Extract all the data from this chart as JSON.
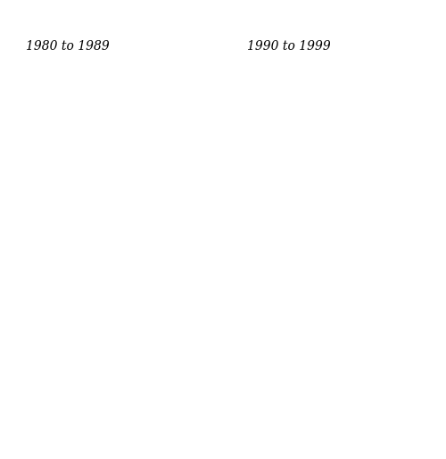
{
  "title_left": "1980 to 1989",
  "title_right": "1990 to 1999",
  "title_fontsize": 10,
  "background_color": "#ffffff",
  "figsize": [
    5.0,
    5.15
  ],
  "dpi": 100,
  "border_color": "#444444",
  "default_color": "#eef6ee",
  "proj_extent": [
    -9.5,
    2.2,
    49.5,
    61.2
  ],
  "county_colors_1980": {
    "Highland": "#1a7a1a",
    "Eilean Siar": "#d4ecd4",
    "Orkney Islands": "#eef6ee",
    "Shetland Islands": "#eef6ee",
    "Aberdeenshire": "#1a7a1a",
    "Aberdeen City": "#1a7a1a",
    "Moray": "#1a7a1a",
    "Angus": "#1a7a1a",
    "Perth and Kinross": "#1a7a1a",
    "Dundee City": "#1a7a1a",
    "Stirling": "#111111",
    "Clackmannanshire": "#111111",
    "Falkirk": "#111111",
    "East Lothian": "#2e932e",
    "Edinburgh": "#2e932e",
    "Midlothian": "#2e932e",
    "West Lothian": "#2e932e",
    "Scottish Borders": "#2e932e",
    "South Lanarkshire": "#1a7a1a",
    "North Lanarkshire": "#1a7a1a",
    "East Ayrshire": "#1a7a1a",
    "South Ayrshire": "#1a7a1a",
    "North Ayrshire": "#1a7a1a",
    "Argyll and Bute": "#1a7a1a",
    "Dumfries and Galloway": "#2e932e",
    "Fife": "#c8e6c8",
    "Renfrewshire": "#1a7a1a",
    "East Renfrewshire": "#1a7a1a",
    "Inverclyde": "#1a7a1a",
    "West Dunbartonshire": "#1a7a1a",
    "East Dunbartonshire": "#1a7a1a",
    "Glasgow City": "#1a7a1a",
    "Northumberland": "#2e932e",
    "Cumbria": "#2e932e",
    "Durham": "#6db86d",
    "North Yorkshire": "#6db86d",
    "Lancashire": "#d4ecd4",
    "Tyne and Wear": "#eef6ee",
    "Cleveland": "#eef6ee",
    "West Yorkshire": "#eef6ee",
    "South Yorkshire": "#eef6ee",
    "Humberside": "#eef6ee",
    "Lincolnshire": "#eef6ee",
    "Norfolk": "#d4ecd4",
    "Suffolk": "#d4ecd4",
    "Essex": "#eef6ee",
    "Kent": "#d4ecd4",
    "East Sussex": "#a8d5a8",
    "West Sussex": "#eef6ee",
    "Surrey": "#eef6ee",
    "Hampshire": "#eef6ee",
    "Dorset": "#d4ecd4",
    "Devon": "#6db86d",
    "Cornwall": "#eef6ee",
    "Somerset": "#eef6ee",
    "Wiltshire": "#eef6ee",
    "Berkshire": "#eef6ee",
    "Oxfordshire": "#eef6ee",
    "Buckinghamshire": "#eef6ee",
    "Hertfordshire": "#eef6ee",
    "Bedfordshire": "#eef6ee",
    "Cambridgeshire": "#eef6ee",
    "Nottinghamshire": "#eef6ee",
    "Derbyshire": "#eef6ee",
    "Leicestershire": "#eef6ee",
    "Staffordshire": "#eef6ee",
    "West Midlands": "#eef6ee",
    "Warwickshire": "#eef6ee",
    "Worcestershire": "#eef6ee",
    "Herefordshire": "#eef6ee",
    "Gloucestershire": "#eef6ee",
    "Avon": "#eef6ee",
    "Shropshire": "#eef6ee",
    "Cheshire": "#eef6ee",
    "Merseyside": "#eef6ee",
    "Greater Manchester": "#eef6ee",
    "East Yorkshire": "#eef6ee",
    "North Lincolnshire": "#eef6ee",
    "Powys": "#d4ecd4",
    "Gwynedd": "#d4ecd4",
    "Conwy": "#eef6ee",
    "Denbighshire": "#eef6ee",
    "Flintshire": "#eef6ee",
    "Wrexham": "#eef6ee",
    "Ceredigion": "#eef6ee",
    "Pembrokeshire": "#eef6ee",
    "Carmarthenshire": "#eef6ee",
    "Swansea": "#eef6ee",
    "Neath Port Talbot": "#eef6ee",
    "Bridgend": "#eef6ee",
    "Vale of Glamorgan": "#eef6ee",
    "Cardiff": "#eef6ee",
    "Rhondda Cynon Taf": "#eef6ee",
    "Merthyr Tydfil": "#eef6ee",
    "Caerphilly": "#eef6ee",
    "Blaenau Gwent": "#eef6ee",
    "Torfaen": "#eef6ee",
    "Newport": "#eef6ee",
    "Monmouthshire": "#eef6ee",
    "Isle of Anglesey": "#eef6ee"
  },
  "county_colors_1990": {
    "Highland": "#1a7a1a",
    "Eilean Siar": "#d4ecd4",
    "Orkney Islands": "#eef6ee",
    "Shetland Islands": "#eef6ee",
    "Aberdeenshire": "#1a7a1a",
    "Aberdeen City": "#1a7a1a",
    "Moray": "#1a7a1a",
    "Angus": "#2e932e",
    "Perth and Kinross": "#2e932e",
    "Dundee City": "#2e932e",
    "Stirling": "#2e932e",
    "Clackmannanshire": "#2e932e",
    "Falkirk": "#2e932e",
    "East Lothian": "#b8dbb8",
    "Edinburgh": "#b8dbb8",
    "Midlothian": "#b8dbb8",
    "West Lothian": "#b8dbb8",
    "Scottish Borders": "#2e932e",
    "South Lanarkshire": "#1a7a1a",
    "North Lanarkshire": "#1a7a1a",
    "East Ayrshire": "#1a7a1a",
    "South Ayrshire": "#1a7a1a",
    "North Ayrshire": "#1a7a1a",
    "Argyll and Bute": "#1a7a1a",
    "Dumfries and Galloway": "#2e932e",
    "Fife": "#c8e6c8",
    "Renfrewshire": "#1a7a1a",
    "East Renfrewshire": "#1a7a1a",
    "Inverclyde": "#1a7a1a",
    "West Dunbartonshire": "#1a7a1a",
    "East Dunbartonshire": "#1a7a1a",
    "Glasgow City": "#1a7a1a",
    "Northumberland": "#2e932e",
    "Cumbria": "#b8dbb8",
    "Durham": "#2e932e",
    "North Yorkshire": "#2e932e",
    "Lancashire": "#d4ecd4",
    "Norfolk": "#6db86d",
    "East Sussex": "#6db86d",
    "West Sussex": "#eef6ee",
    "Kent": "#6db86d",
    "Dorset": "#6db86d",
    "Devon": "#6db86d",
    "Cornwall": "#eef6ee",
    "Powys": "#d4ecd4",
    "Gwynedd": "#d4ecd4"
  }
}
